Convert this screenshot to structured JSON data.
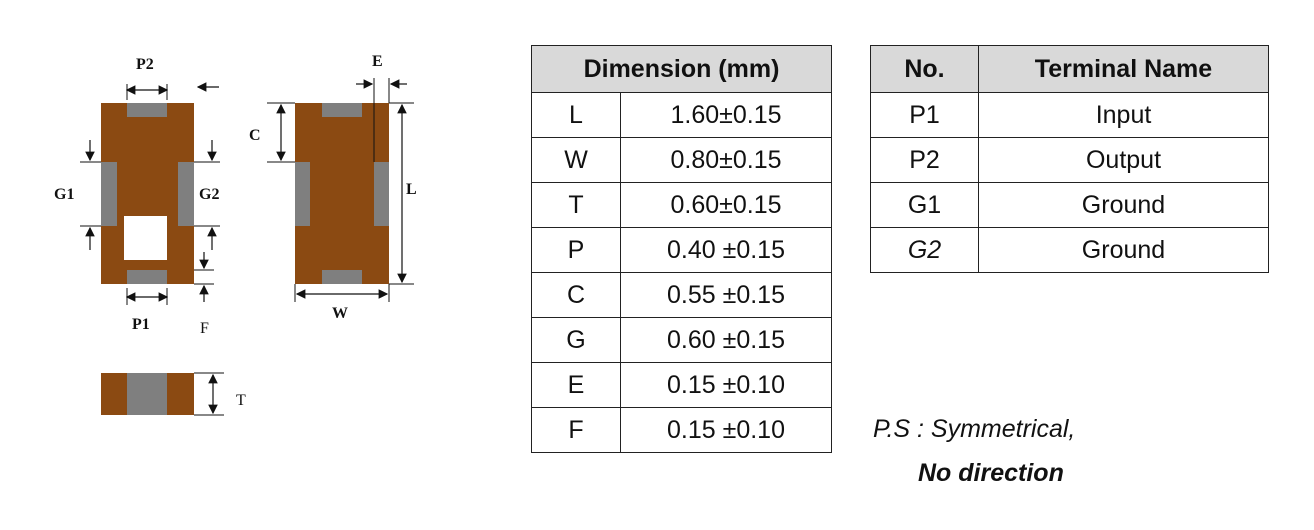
{
  "drawing": {
    "colors": {
      "body": "#8b4a12",
      "pad": "#7f7f7f",
      "line": "#111111",
      "window": "#ffffff"
    },
    "labels": {
      "p2": "P2",
      "p1": "P1",
      "g1": "G1",
      "g2": "G2",
      "f": "F",
      "c": "C",
      "e": "E",
      "l": "L",
      "w": "W",
      "t": "T"
    }
  },
  "dimension_table": {
    "header": "Dimension (mm)",
    "rows": [
      {
        "symbol": "L",
        "value": "1.60±0.15"
      },
      {
        "symbol": "W",
        "value": "0.80±0.15"
      },
      {
        "symbol": "T",
        "value": "0.60±0.15"
      },
      {
        "symbol": "P",
        "value": "0.40 ±0.15"
      },
      {
        "symbol": "C",
        "value": "0.55 ±0.15"
      },
      {
        "symbol": "G",
        "value": "0.60 ±0.15"
      },
      {
        "symbol": "E",
        "value": "0.15 ±0.10"
      },
      {
        "symbol": "F",
        "value": "0.15 ±0.10"
      }
    ]
  },
  "terminal_table": {
    "header_no": "No.",
    "header_name": "Terminal Name",
    "rows": [
      {
        "no": "P1",
        "name": "Input"
      },
      {
        "no": "P2",
        "name": "Output"
      },
      {
        "no": "G1",
        "name": "Ground"
      },
      {
        "no": "G2",
        "name": "Ground"
      }
    ]
  },
  "note": {
    "line1": "P.S : Symmetrical,",
    "line2": "No direction"
  }
}
